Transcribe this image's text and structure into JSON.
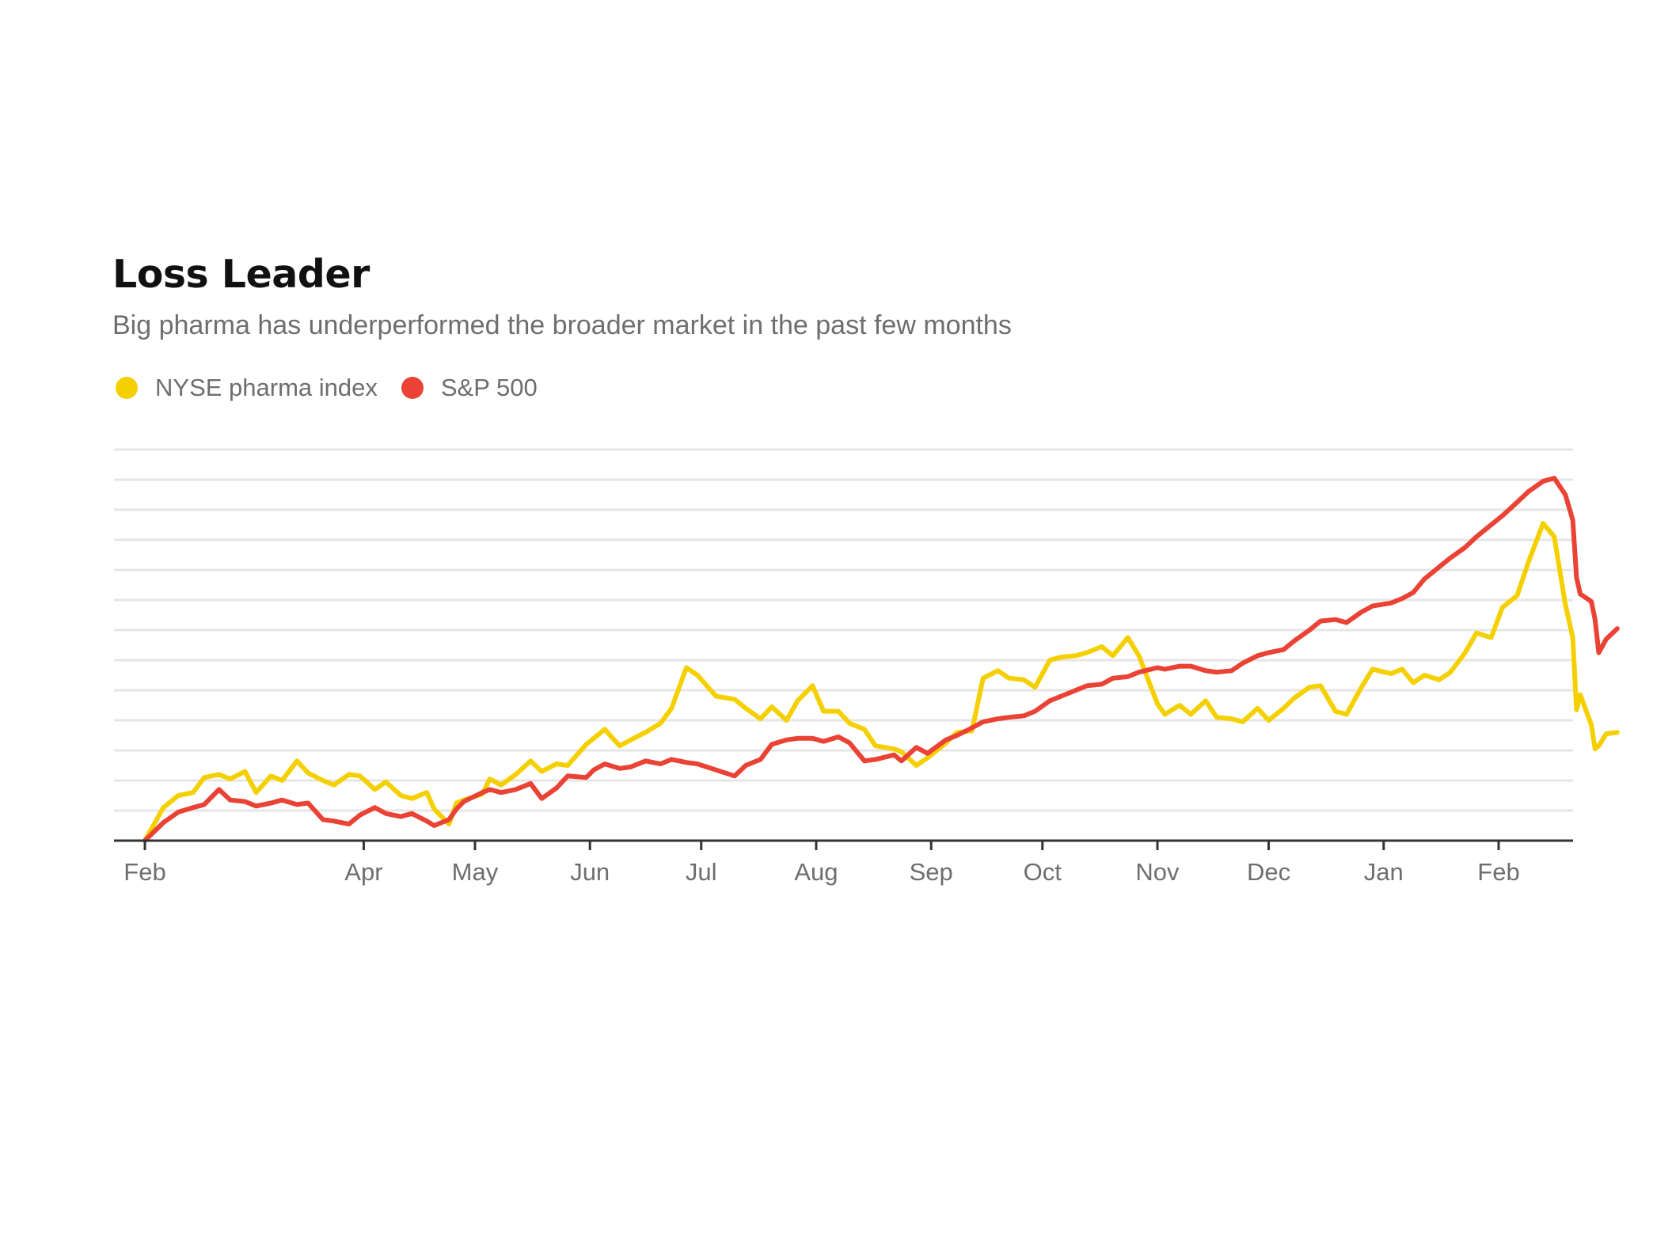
{
  "chart_data": {
    "type": "line",
    "title": "Loss Leader",
    "subtitle": "Big pharma has underperformed the broader market in the past few months",
    "xlabel": "",
    "ylabel": "",
    "x_tick_labels": [
      "Feb",
      "Apr",
      "May",
      "Jun",
      "Jul",
      "Aug",
      "Sep",
      "Oct",
      "Nov",
      "Dec",
      "Jan",
      "Feb"
    ],
    "x_tick_dates": [
      "2017-02-01",
      "2017-04-01",
      "2017-05-01",
      "2017-06-01",
      "2017-07-01",
      "2017-08-01",
      "2017-09-01",
      "2017-10-01",
      "2017-11-01",
      "2017-12-01",
      "2018-01-01",
      "2018-02-01"
    ],
    "x_range": [
      "2017-01-23",
      "2018-02-28"
    ],
    "ylim": [
      0,
      26
    ],
    "y_tick_labels": [],
    "grid": true,
    "legend_position": "top-left",
    "series": [
      {
        "name": "NYSE pharma index",
        "color": "#f5d000",
        "points": [
          [
            "2017-02-01",
            0
          ],
          [
            "2017-02-06",
            2.2
          ],
          [
            "2017-02-10",
            3
          ],
          [
            "2017-02-14",
            3.2
          ],
          [
            "2017-02-17",
            4.2
          ],
          [
            "2017-02-21",
            4.4
          ],
          [
            "2017-02-24",
            4.1
          ],
          [
            "2017-02-28",
            4.6
          ],
          [
            "2017-03-03",
            3.2
          ],
          [
            "2017-03-07",
            4.3
          ],
          [
            "2017-03-10",
            4
          ],
          [
            "2017-03-14",
            5.3
          ],
          [
            "2017-03-17",
            4.5
          ],
          [
            "2017-03-21",
            4
          ],
          [
            "2017-03-24",
            3.7
          ],
          [
            "2017-03-28",
            4.4
          ],
          [
            "2017-03-31",
            4.3
          ],
          [
            "2017-04-04",
            3.4
          ],
          [
            "2017-04-07",
            3.9
          ],
          [
            "2017-04-11",
            3
          ],
          [
            "2017-04-14",
            2.8
          ],
          [
            "2017-04-18",
            3.2
          ],
          [
            "2017-04-20",
            2.1
          ],
          [
            "2017-04-24",
            1.1
          ],
          [
            "2017-04-26",
            2.5
          ],
          [
            "2017-04-28",
            2.7
          ],
          [
            "2017-05-03",
            3.1
          ],
          [
            "2017-05-05",
            4.1
          ],
          [
            "2017-05-08",
            3.7
          ],
          [
            "2017-05-12",
            4.4
          ],
          [
            "2017-05-16",
            5.3
          ],
          [
            "2017-05-19",
            4.6
          ],
          [
            "2017-05-23",
            5.1
          ],
          [
            "2017-05-26",
            5
          ],
          [
            "2017-05-31",
            6.4
          ],
          [
            "2017-06-02",
            6.8
          ],
          [
            "2017-06-05",
            7.4
          ],
          [
            "2017-06-09",
            6.3
          ],
          [
            "2017-06-12",
            6.7
          ],
          [
            "2017-06-16",
            7.2
          ],
          [
            "2017-06-20",
            7.8
          ],
          [
            "2017-06-23",
            8.8
          ],
          [
            "2017-06-27",
            11.5
          ],
          [
            "2017-06-30",
            11
          ],
          [
            "2017-07-05",
            9.6
          ],
          [
            "2017-07-10",
            9.4
          ],
          [
            "2017-07-13",
            8.8
          ],
          [
            "2017-07-17",
            8.1
          ],
          [
            "2017-07-20",
            8.9
          ],
          [
            "2017-07-24",
            8
          ],
          [
            "2017-07-27",
            9.3
          ],
          [
            "2017-07-31",
            10.3
          ],
          [
            "2017-08-03",
            8.6
          ],
          [
            "2017-08-07",
            8.6
          ],
          [
            "2017-08-10",
            7.8
          ],
          [
            "2017-08-14",
            7.4
          ],
          [
            "2017-08-17",
            6.3
          ],
          [
            "2017-08-22",
            6.1
          ],
          [
            "2017-08-24",
            5.9
          ],
          [
            "2017-08-28",
            5
          ],
          [
            "2017-08-31",
            5.5
          ],
          [
            "2017-09-05",
            6.5
          ],
          [
            "2017-09-08",
            7.2
          ],
          [
            "2017-09-12",
            7.3
          ],
          [
            "2017-09-15",
            10.8
          ],
          [
            "2017-09-19",
            11.3
          ],
          [
            "2017-09-22",
            10.8
          ],
          [
            "2017-09-26",
            10.7
          ],
          [
            "2017-09-29",
            10.2
          ],
          [
            "2017-10-03",
            12
          ],
          [
            "2017-10-06",
            12.2
          ],
          [
            "2017-10-10",
            12.3
          ],
          [
            "2017-10-13",
            12.5
          ],
          [
            "2017-10-17",
            12.9
          ],
          [
            "2017-10-20",
            12.3
          ],
          [
            "2017-10-24",
            13.5
          ],
          [
            "2017-10-27",
            12.3
          ],
          [
            "2017-11-01",
            9.1
          ],
          [
            "2017-11-03",
            8.4
          ],
          [
            "2017-11-07",
            9
          ],
          [
            "2017-11-10",
            8.4
          ],
          [
            "2017-11-14",
            9.3
          ],
          [
            "2017-11-17",
            8.2
          ],
          [
            "2017-11-21",
            8.1
          ],
          [
            "2017-11-24",
            7.9
          ],
          [
            "2017-11-28",
            8.8
          ],
          [
            "2017-12-01",
            8
          ],
          [
            "2017-12-05",
            8.8
          ],
          [
            "2017-12-08",
            9.5
          ],
          [
            "2017-12-12",
            10.2
          ],
          [
            "2017-12-15",
            10.3
          ],
          [
            "2017-12-19",
            8.6
          ],
          [
            "2017-12-22",
            8.4
          ],
          [
            "2017-12-26",
            10.2
          ],
          [
            "2017-12-29",
            11.4
          ],
          [
            "2018-01-03",
            11.1
          ],
          [
            "2018-01-06",
            11.4
          ],
          [
            "2018-01-09",
            10.5
          ],
          [
            "2018-01-12",
            11
          ],
          [
            "2018-01-16",
            10.7
          ],
          [
            "2018-01-19",
            11.2
          ],
          [
            "2018-01-23",
            12.5
          ],
          [
            "2018-01-26",
            13.8
          ],
          [
            "2018-01-30",
            13.5
          ],
          [
            "2018-02-02",
            15.5
          ],
          [
            "2018-02-06",
            16.3
          ],
          [
            "2018-02-09",
            18.5
          ],
          [
            "2018-02-13",
            21.1
          ],
          [
            "2018-02-16",
            20.2
          ],
          [
            "2018-02-19",
            15.7
          ],
          [
            "2018-02-21",
            13.5
          ],
          [
            "2018-02-22",
            8.7
          ],
          [
            "2018-02-23",
            9.7
          ],
          [
            "2018-02-26",
            7.7
          ],
          [
            "2018-02-27",
            6.1
          ],
          [
            "2018-02-28",
            6.3
          ],
          [
            "2018-03-02",
            7.1
          ],
          [
            "2018-03-05",
            7.2
          ]
        ]
      },
      {
        "name": "S&P 500",
        "color": "#ea4335",
        "points": [
          [
            "2017-02-01",
            0
          ],
          [
            "2017-02-06",
            1.2
          ],
          [
            "2017-02-10",
            1.9
          ],
          [
            "2017-02-14",
            2.2
          ],
          [
            "2017-02-17",
            2.4
          ],
          [
            "2017-02-21",
            3.4
          ],
          [
            "2017-02-24",
            2.7
          ],
          [
            "2017-02-28",
            2.6
          ],
          [
            "2017-03-03",
            2.3
          ],
          [
            "2017-03-07",
            2.5
          ],
          [
            "2017-03-10",
            2.7
          ],
          [
            "2017-03-14",
            2.4
          ],
          [
            "2017-03-17",
            2.5
          ],
          [
            "2017-03-21",
            1.4
          ],
          [
            "2017-03-24",
            1.3
          ],
          [
            "2017-03-28",
            1.1
          ],
          [
            "2017-03-31",
            1.7
          ],
          [
            "2017-04-04",
            2.2
          ],
          [
            "2017-04-07",
            1.8
          ],
          [
            "2017-04-11",
            1.6
          ],
          [
            "2017-04-14",
            1.8
          ],
          [
            "2017-04-18",
            1.3
          ],
          [
            "2017-04-20",
            1
          ],
          [
            "2017-04-24",
            1.4
          ],
          [
            "2017-04-26",
            2.1
          ],
          [
            "2017-04-28",
            2.6
          ],
          [
            "2017-05-03",
            3.2
          ],
          [
            "2017-05-05",
            3.4
          ],
          [
            "2017-05-08",
            3.2
          ],
          [
            "2017-05-12",
            3.4
          ],
          [
            "2017-05-16",
            3.8
          ],
          [
            "2017-05-19",
            2.8
          ],
          [
            "2017-05-23",
            3.5
          ],
          [
            "2017-05-26",
            4.3
          ],
          [
            "2017-05-31",
            4.2
          ],
          [
            "2017-06-02",
            4.7
          ],
          [
            "2017-06-05",
            5.1
          ],
          [
            "2017-06-09",
            4.8
          ],
          [
            "2017-06-12",
            4.9
          ],
          [
            "2017-06-16",
            5.3
          ],
          [
            "2017-06-20",
            5.1
          ],
          [
            "2017-06-23",
            5.4
          ],
          [
            "2017-06-27",
            5.2
          ],
          [
            "2017-06-30",
            5.1
          ],
          [
            "2017-07-05",
            4.7
          ],
          [
            "2017-07-10",
            4.3
          ],
          [
            "2017-07-13",
            5
          ],
          [
            "2017-07-17",
            5.4
          ],
          [
            "2017-07-20",
            6.4
          ],
          [
            "2017-07-24",
            6.7
          ],
          [
            "2017-07-27",
            6.8
          ],
          [
            "2017-07-31",
            6.8
          ],
          [
            "2017-08-03",
            6.6
          ],
          [
            "2017-08-07",
            6.9
          ],
          [
            "2017-08-10",
            6.5
          ],
          [
            "2017-08-14",
            5.3
          ],
          [
            "2017-08-17",
            5.4
          ],
          [
            "2017-08-22",
            5.7
          ],
          [
            "2017-08-24",
            5.3
          ],
          [
            "2017-08-28",
            6.2
          ],
          [
            "2017-08-31",
            5.8
          ],
          [
            "2017-09-05",
            6.7
          ],
          [
            "2017-09-08",
            7
          ],
          [
            "2017-09-12",
            7.5
          ],
          [
            "2017-09-15",
            7.9
          ],
          [
            "2017-09-19",
            8.1
          ],
          [
            "2017-09-22",
            8.2
          ],
          [
            "2017-09-26",
            8.3
          ],
          [
            "2017-09-29",
            8.6
          ],
          [
            "2017-10-03",
            9.3
          ],
          [
            "2017-10-06",
            9.6
          ],
          [
            "2017-10-10",
            10
          ],
          [
            "2017-10-13",
            10.3
          ],
          [
            "2017-10-17",
            10.4
          ],
          [
            "2017-10-20",
            10.8
          ],
          [
            "2017-10-24",
            10.9
          ],
          [
            "2017-10-27",
            11.2
          ],
          [
            "2017-11-01",
            11.5
          ],
          [
            "2017-11-03",
            11.4
          ],
          [
            "2017-11-07",
            11.6
          ],
          [
            "2017-11-10",
            11.6
          ],
          [
            "2017-11-14",
            11.3
          ],
          [
            "2017-11-17",
            11.2
          ],
          [
            "2017-11-21",
            11.3
          ],
          [
            "2017-11-24",
            11.8
          ],
          [
            "2017-11-28",
            12.3
          ],
          [
            "2017-12-01",
            12.5
          ],
          [
            "2017-12-05",
            12.7
          ],
          [
            "2017-12-08",
            13.3
          ],
          [
            "2017-12-12",
            14
          ],
          [
            "2017-12-15",
            14.6
          ],
          [
            "2017-12-19",
            14.7
          ],
          [
            "2017-12-22",
            14.5
          ],
          [
            "2017-12-26",
            15.2
          ],
          [
            "2017-12-29",
            15.6
          ],
          [
            "2018-01-03",
            15.8
          ],
          [
            "2018-01-06",
            16.1
          ],
          [
            "2018-01-09",
            16.5
          ],
          [
            "2018-01-12",
            17.4
          ],
          [
            "2018-01-16",
            18.2
          ],
          [
            "2018-01-19",
            18.8
          ],
          [
            "2018-01-23",
            19.5
          ],
          [
            "2018-01-26",
            20.2
          ],
          [
            "2018-01-30",
            21
          ],
          [
            "2018-02-02",
            21.6
          ],
          [
            "2018-02-06",
            22.5
          ],
          [
            "2018-02-09",
            23.2
          ],
          [
            "2018-02-13",
            23.9
          ],
          [
            "2018-02-16",
            24.1
          ],
          [
            "2018-02-19",
            23
          ],
          [
            "2018-02-21",
            21.3
          ],
          [
            "2018-02-22",
            17.5
          ],
          [
            "2018-02-23",
            16.4
          ],
          [
            "2018-02-26",
            15.9
          ],
          [
            "2018-02-27",
            14.7
          ],
          [
            "2018-02-28",
            12.5
          ],
          [
            "2018-03-02",
            13.4
          ],
          [
            "2018-03-05",
            14.1
          ]
        ]
      }
    ]
  }
}
